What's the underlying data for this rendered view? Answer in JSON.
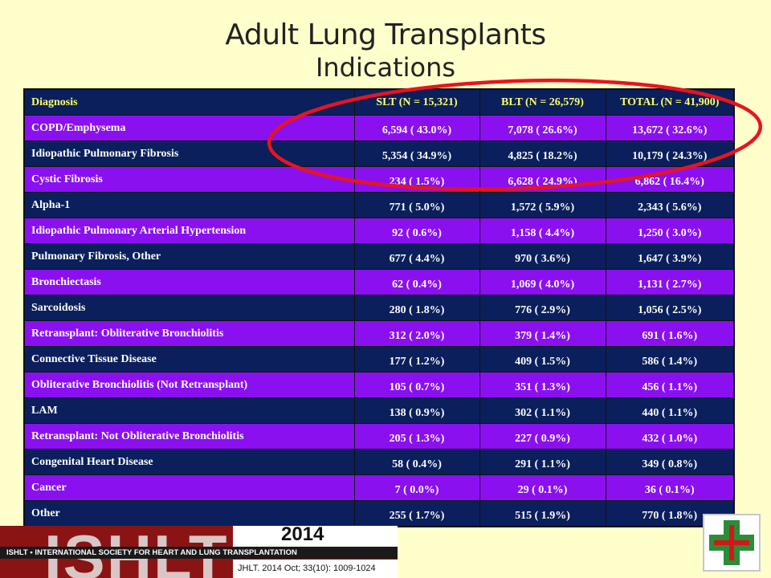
{
  "title": "Adult Lung Transplants",
  "subtitle": "Indications",
  "table": {
    "headers": [
      "Diagnosis",
      "SLT (N = 15,321)",
      "BLT (N = 26,579)",
      "TOTAL (N = 41,900)"
    ],
    "rows": [
      {
        "diagnosis": "COPD/Emphysema",
        "slt": "6,594 ( 43.0%)",
        "blt": "7,078 ( 26.6%)",
        "total": "13,672 ( 32.6%)"
      },
      {
        "diagnosis": "Idiopathic Pulmonary Fibrosis",
        "slt": "5,354 ( 34.9%)",
        "blt": "4,825 ( 18.2%)",
        "total": "10,179 ( 24.3%)"
      },
      {
        "diagnosis": "Cystic Fibrosis",
        "slt": "234 ( 1.5%)",
        "blt": "6,628 ( 24.9%)",
        "total": "6,862 ( 16.4%)"
      },
      {
        "diagnosis": "Alpha-1",
        "slt": "771 ( 5.0%)",
        "blt": "1,572 ( 5.9%)",
        "total": "2,343 ( 5.6%)"
      },
      {
        "diagnosis": "Idiopathic Pulmonary Arterial Hypertension",
        "slt": "92 ( 0.6%)",
        "blt": "1,158 ( 4.4%)",
        "total": "1,250 ( 3.0%)"
      },
      {
        "diagnosis": "Pulmonary Fibrosis, Other",
        "slt": "677 ( 4.4%)",
        "blt": "970 ( 3.6%)",
        "total": "1,647 ( 3.9%)"
      },
      {
        "diagnosis": "Bronchiectasis",
        "slt": "62 ( 0.4%)",
        "blt": "1,069 ( 4.0%)",
        "total": "1,131 ( 2.7%)"
      },
      {
        "diagnosis": "Sarcoidosis",
        "slt": "280 ( 1.8%)",
        "blt": "776 ( 2.9%)",
        "total": "1,056 ( 2.5%)"
      },
      {
        "diagnosis": "Retransplant: Obliterative Bronchiolitis",
        "slt": "312 ( 2.0%)",
        "blt": "379 ( 1.4%)",
        "total": "691 ( 1.6%)"
      },
      {
        "diagnosis": "Connective Tissue Disease",
        "slt": "177 ( 1.2%)",
        "blt": "409 ( 1.5%)",
        "total": "586 ( 1.4%)"
      },
      {
        "diagnosis": "Obliterative Bronchiolitis (Not Retransplant)",
        "slt": "105 ( 0.7%)",
        "blt": "351 ( 1.3%)",
        "total": "456 ( 1.1%)"
      },
      {
        "diagnosis": "LAM",
        "slt": "138 ( 0.9%)",
        "blt": "302 ( 1.1%)",
        "total": "440 ( 1.1%)"
      },
      {
        "diagnosis": "Retransplant: Not Obliterative Bronchiolitis",
        "slt": "205 ( 1.3%)",
        "blt": "227 ( 0.9%)",
        "total": "432 ( 1.0%)"
      },
      {
        "diagnosis": "Congenital Heart Disease",
        "slt": "58 ( 0.4%)",
        "blt": "291 ( 1.1%)",
        "total": "349 ( 0.8%)"
      },
      {
        "diagnosis": "Cancer",
        "slt": "7 ( 0.0%)",
        "blt": "29 ( 0.1%)",
        "total": "36 ( 0.1%)"
      },
      {
        "diagnosis": "Other",
        "slt": "255 ( 1.7%)",
        "blt": "515 ( 1.9%)",
        "total": "770 ( 1.8%)"
      }
    ]
  },
  "footer": {
    "logo_text": "ISHLT",
    "year": "2014",
    "org_name": "ISHLT • INTERNATIONAL SOCIETY FOR HEART AND LUNG TRANSPLANTATION",
    "citation": "JHLT. 2014 Oct; 33(10): 1009-1024"
  },
  "colors": {
    "background": "#FFFFCC",
    "row_navy": "#0A1F5C",
    "row_purple": "#8B10F0",
    "header_text": "#FFFF66",
    "highlight_oval": "#E8141E",
    "logo_red": "#8A1414",
    "cross_green": "#2E8B3A",
    "cross_red": "#D01818"
  },
  "icons": [
    "ishlt-logo",
    "green-cross-icon"
  ]
}
